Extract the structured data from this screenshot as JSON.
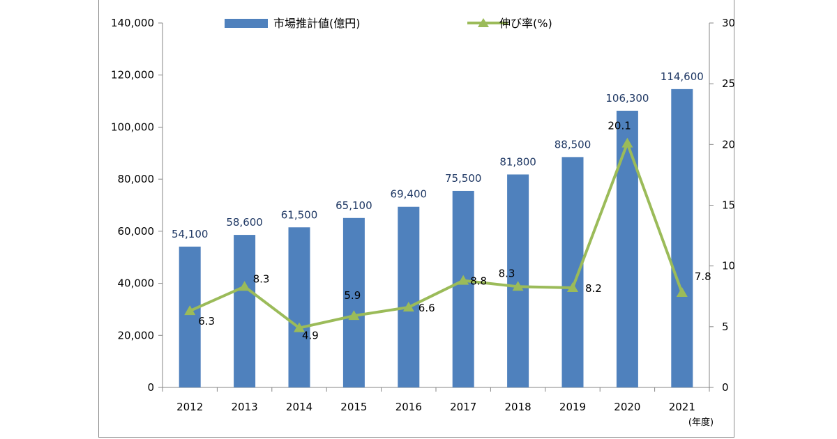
{
  "chart_data": {
    "type": "bar",
    "categories": [
      "2012",
      "2013",
      "2014",
      "2015",
      "2016",
      "2017",
      "2018",
      "2019",
      "2020",
      "2021"
    ],
    "series": [
      {
        "name": "市場推計値(億円)",
        "type": "bar",
        "axis": "left",
        "values": [
          54100,
          58600,
          61500,
          65100,
          69400,
          75500,
          81800,
          88500,
          106300,
          114600
        ],
        "labels": [
          "54,100",
          "58,600",
          "61,500",
          "65,100",
          "69,400",
          "75,500",
          "81,800",
          "88,500",
          "106,300",
          "114,600"
        ],
        "color": "#4f81bd"
      },
      {
        "name": "伸び率(%)",
        "type": "line",
        "axis": "right",
        "values": [
          6.3,
          8.3,
          4.9,
          5.9,
          6.6,
          8.8,
          8.3,
          8.2,
          20.1,
          7.8
        ],
        "labels": [
          "6.3",
          "8.3",
          "4.9",
          "5.9",
          "6.6",
          "8.8",
          "8.3",
          "8.2",
          "20.1",
          "7.8"
        ],
        "color": "#9bbb59",
        "marker": "triangle"
      }
    ],
    "y_left": {
      "range": [
        0,
        140000
      ],
      "ticks": [
        0,
        20000,
        40000,
        60000,
        80000,
        100000,
        120000,
        140000
      ],
      "tick_labels": [
        "0",
        "20,000",
        "40,000",
        "60,000",
        "80,000",
        "100,000",
        "120,000",
        "140,000"
      ]
    },
    "y_right": {
      "range": [
        0,
        30
      ],
      "ticks": [
        0,
        5,
        10,
        15,
        20,
        25,
        30
      ],
      "tick_labels": [
        "0",
        "5",
        "10",
        "15",
        "20",
        "25",
        "30"
      ]
    },
    "x_unit": "(年度)",
    "grid": false,
    "legend_position": "top"
  }
}
